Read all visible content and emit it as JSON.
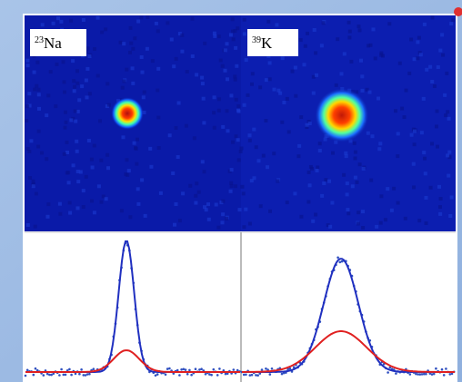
{
  "panels": [
    {
      "mass": "23",
      "element": "Na"
    },
    {
      "mass": "39",
      "element": "K"
    }
  ]
}
